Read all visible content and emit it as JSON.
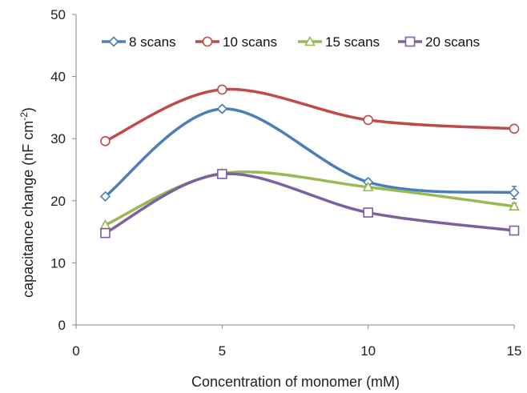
{
  "chart_data": {
    "type": "line",
    "title": "",
    "xlabel": "Concentration of monomer (mM)",
    "ylabel": {
      "main": "capacitance change (nF cm",
      "superscript": "-2",
      "close": ")"
    },
    "xlim": [
      0,
      15
    ],
    "ylim": [
      0,
      50
    ],
    "xticks": [
      0,
      5,
      10,
      15
    ],
    "yticks": [
      0,
      10,
      20,
      30,
      40,
      50
    ],
    "grid": false,
    "legend_position": "top",
    "x": [
      1,
      5,
      10,
      15
    ],
    "series": [
      {
        "name": "8 scans",
        "marker": "diamond",
        "color": "#4a7ebb",
        "values": [
          20.7,
          34.8,
          23.0,
          21.3
        ],
        "error": [
          0.4,
          0.5,
          0.5,
          1.0
        ]
      },
      {
        "name": "10 scans",
        "marker": "circle",
        "color": "#be4b48",
        "values": [
          29.6,
          37.9,
          33.0,
          31.6
        ],
        "error": [
          0.3,
          0.3,
          0.3,
          0.3
        ]
      },
      {
        "name": "15 scans",
        "marker": "triangle",
        "color": "#98b954",
        "values": [
          16.1,
          24.4,
          22.2,
          19.1
        ],
        "error": [
          0.3,
          0.3,
          0.4,
          0.5
        ]
      },
      {
        "name": "20 scans",
        "marker": "square",
        "color": "#7d60a0",
        "values": [
          14.8,
          24.3,
          18.1,
          15.2
        ],
        "error": [
          0.3,
          0.3,
          0.3,
          0.3
        ]
      }
    ]
  }
}
